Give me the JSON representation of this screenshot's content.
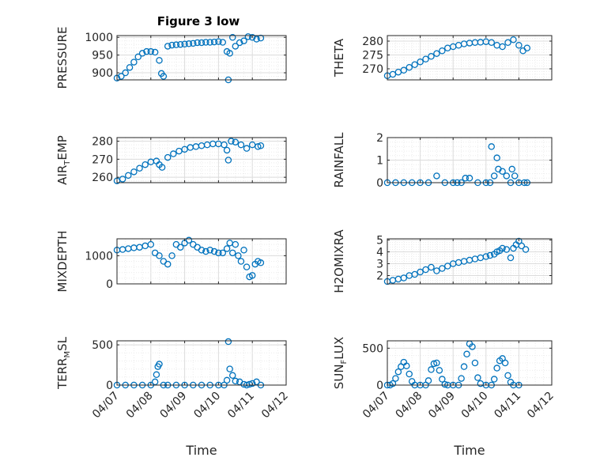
{
  "figure_title": "Figure 3 low",
  "chart_data": [
    {
      "type": "scatter",
      "ylabel": "PRESSURE",
      "xlim": [
        "04/07",
        "04/12"
      ],
      "ylim": [
        880,
        1005
      ],
      "yticks": [
        900,
        950,
        1000
      ],
      "marker_color": "#0072BD",
      "grid": "on",
      "x": [
        "04/07 00:00",
        "04/07 03:00",
        "04/07 06:00",
        "04/07 09:00",
        "04/07 12:00",
        "04/07 15:00",
        "04/07 18:00",
        "04/07 21:00",
        "04/08 00:00",
        "04/08 03:00",
        "04/08 06:00",
        "04/08 07:30",
        "04/08 09:00",
        "04/08 12:00",
        "04/08 15:00",
        "04/08 18:00",
        "04/08 21:00",
        "04/09 00:00",
        "04/09 03:00",
        "04/09 06:00",
        "04/09 09:00",
        "04/09 12:00",
        "04/09 15:00",
        "04/09 18:00",
        "04/09 21:00",
        "04/10 00:00",
        "04/10 03:00",
        "04/10 06:00",
        "04/10 07:00",
        "04/10 08:00",
        "04/10 10:00",
        "04/10 12:00",
        "04/10 15:00",
        "04/10 18:00",
        "04/10 21:00",
        "04/11 00:00",
        "04/11 03:00",
        "04/11 06:00"
      ],
      "values": [
        885,
        890,
        900,
        915,
        930,
        945,
        955,
        960,
        960,
        958,
        935,
        898,
        890,
        975,
        978,
        979,
        980,
        981,
        982,
        983,
        985,
        985,
        986,
        986,
        987,
        988,
        986,
        960,
        880,
        955,
        1000,
        975,
        985,
        990,
        1002,
        1000,
        995,
        998
      ]
    },
    {
      "type": "scatter",
      "ylabel": "THETA",
      "xlim": [
        "04/07",
        "04/12"
      ],
      "ylim": [
        266,
        282
      ],
      "yticks": [
        270,
        275,
        280
      ],
      "marker_color": "#0072BD",
      "grid": "on",
      "x": [
        "04/07 00:00",
        "04/07 04:00",
        "04/07 08:00",
        "04/07 12:00",
        "04/07 16:00",
        "04/07 20:00",
        "04/08 00:00",
        "04/08 04:00",
        "04/08 08:00",
        "04/08 12:00",
        "04/08 16:00",
        "04/08 20:00",
        "04/09 00:00",
        "04/09 04:00",
        "04/09 08:00",
        "04/09 12:00",
        "04/09 16:00",
        "04/09 20:00",
        "04/10 00:00",
        "04/10 04:00",
        "04/10 08:00",
        "04/10 12:00",
        "04/10 16:00",
        "04/10 20:00",
        "04/11 00:00",
        "04/11 03:00",
        "04/11 06:00"
      ],
      "values": [
        267.5,
        268,
        268.8,
        269.5,
        270.5,
        271.5,
        272.5,
        273.5,
        274.5,
        275.5,
        276.5,
        277.5,
        278,
        278.5,
        279,
        279.3,
        279.5,
        279.6,
        279.8,
        279.5,
        278.5,
        278,
        279.5,
        280.5,
        278.5,
        276.5,
        277.5
      ]
    },
    {
      "type": "scatter",
      "ylabel": "AIR_TEMP",
      "xlim": [
        "04/07",
        "04/12"
      ],
      "ylim": [
        257,
        282
      ],
      "yticks": [
        260,
        270,
        280
      ],
      "marker_color": "#0072BD",
      "grid": "on",
      "x": [
        "04/07 00:00",
        "04/07 04:00",
        "04/07 08:00",
        "04/07 12:00",
        "04/07 16:00",
        "04/07 20:00",
        "04/08 00:00",
        "04/08 04:00",
        "04/08 06:00",
        "04/08 08:00",
        "04/08 12:00",
        "04/08 16:00",
        "04/08 20:00",
        "04/09 00:00",
        "04/09 04:00",
        "04/09 08:00",
        "04/09 12:00",
        "04/09 16:00",
        "04/09 20:00",
        "04/10 00:00",
        "04/10 04:00",
        "04/10 06:00",
        "04/10 07:00",
        "04/10 09:00",
        "04/10 12:00",
        "04/10 16:00",
        "04/10 20:00",
        "04/11 00:00",
        "04/11 04:00",
        "04/11 06:00"
      ],
      "values": [
        258,
        259,
        261,
        263,
        265,
        267,
        268.5,
        269,
        267,
        265.5,
        271,
        273,
        274.5,
        275.5,
        276.5,
        277,
        277.5,
        278,
        278.5,
        278.5,
        278,
        275,
        269.5,
        280,
        279.5,
        278,
        276,
        278,
        277,
        277.5
      ]
    },
    {
      "type": "scatter",
      "ylabel": "RAINFALL",
      "xlim": [
        "04/07",
        "04/12"
      ],
      "ylim": [
        0,
        2
      ],
      "yticks": [
        0,
        1,
        2
      ],
      "marker_color": "#0072BD",
      "grid": "on",
      "x": [
        "04/07 00:00",
        "04/07 06:00",
        "04/07 12:00",
        "04/07 18:00",
        "04/08 00:00",
        "04/08 06:00",
        "04/08 12:00",
        "04/08 18:00",
        "04/09 00:00",
        "04/09 03:00",
        "04/09 06:00",
        "04/09 09:00",
        "04/09 12:00",
        "04/09 18:00",
        "04/10 00:00",
        "04/10 03:00",
        "04/10 04:00",
        "04/10 06:00",
        "04/10 08:00",
        "04/10 09:00",
        "04/10 12:00",
        "04/10 15:00",
        "04/10 18:00",
        "04/10 19:00",
        "04/10 21:00",
        "04/11 00:00",
        "04/11 04:00",
        "04/11 06:00"
      ],
      "values": [
        0,
        0,
        0,
        0,
        0,
        0,
        0.3,
        0,
        0,
        0,
        0,
        0.2,
        0.2,
        0,
        0,
        0,
        1.6,
        0.3,
        1.1,
        0.6,
        0.5,
        0.3,
        0,
        0.6,
        0.3,
        0,
        0,
        0
      ]
    },
    {
      "type": "scatter",
      "ylabel": "MIXDEPTH",
      "xlim": [
        "04/07",
        "04/12"
      ],
      "ylim": [
        0,
        1600
      ],
      "yticks": [
        0,
        1000
      ],
      "marker_color": "#0072BD",
      "grid": "on",
      "x": [
        "04/07 00:00",
        "04/07 04:00",
        "04/07 08:00",
        "04/07 12:00",
        "04/07 16:00",
        "04/07 20:00",
        "04/08 00:00",
        "04/08 03:00",
        "04/08 06:00",
        "04/08 09:00",
        "04/08 12:00",
        "04/08 15:00",
        "04/08 18:00",
        "04/08 21:00",
        "04/09 00:00",
        "04/09 03:00",
        "04/09 06:00",
        "04/09 09:00",
        "04/09 12:00",
        "04/09 15:00",
        "04/09 18:00",
        "04/09 21:00",
        "04/10 00:00",
        "04/10 03:00",
        "04/10 06:00",
        "04/10 08:00",
        "04/10 10:00",
        "04/10 12:00",
        "04/10 14:00",
        "04/10 16:00",
        "04/10 18:00",
        "04/10 20:00",
        "04/10 22:00",
        "04/11 00:00",
        "04/11 02:00",
        "04/11 04:00",
        "04/11 06:00"
      ],
      "values": [
        1200,
        1220,
        1250,
        1280,
        1300,
        1350,
        1400,
        1100,
        1000,
        800,
        700,
        1000,
        1400,
        1300,
        1450,
        1550,
        1400,
        1300,
        1200,
        1150,
        1200,
        1150,
        1100,
        1100,
        1250,
        1450,
        1100,
        1400,
        1000,
        800,
        1200,
        600,
        250,
        300,
        700,
        800,
        750
      ]
    },
    {
      "type": "scatter",
      "ylabel": "H2OMIXRA",
      "xlim": [
        "04/07",
        "04/12"
      ],
      "ylim": [
        1.3,
        5.1
      ],
      "yticks": [
        2,
        3,
        4,
        5
      ],
      "marker_color": "#0072BD",
      "grid": "on",
      "x": [
        "04/07 00:00",
        "04/07 04:00",
        "04/07 08:00",
        "04/07 12:00",
        "04/07 16:00",
        "04/07 20:00",
        "04/08 00:00",
        "04/08 04:00",
        "04/08 08:00",
        "04/08 12:00",
        "04/08 16:00",
        "04/08 20:00",
        "04/09 00:00",
        "04/09 04:00",
        "04/09 08:00",
        "04/09 12:00",
        "04/09 16:00",
        "04/09 20:00",
        "04/10 00:00",
        "04/10 03:00",
        "04/10 06:00",
        "04/10 08:00",
        "04/10 10:00",
        "04/10 12:00",
        "04/10 15:00",
        "04/10 18:00",
        "04/10 20:00",
        "04/10 22:00",
        "04/11 00:00",
        "04/11 02:00",
        "04/11 05:00"
      ],
      "values": [
        1.5,
        1.6,
        1.7,
        1.8,
        2,
        2.1,
        2.3,
        2.5,
        2.7,
        2.4,
        2.6,
        2.8,
        3,
        3.1,
        3.2,
        3.3,
        3.4,
        3.5,
        3.6,
        3.7,
        3.8,
        4,
        4.1,
        4.3,
        4.2,
        3.5,
        4.3,
        4.6,
        4.9,
        4.5,
        4.2
      ]
    },
    {
      "type": "scatter",
      "ylabel": "TERR_MSL",
      "xlim": [
        "04/07",
        "04/12"
      ],
      "ylim": [
        0,
        550
      ],
      "yticks": [
        0,
        500
      ],
      "xticks": [
        "04/07",
        "04/08",
        "04/09",
        "04/10",
        "04/11",
        "04/12"
      ],
      "xlabel": "Time",
      "marker_color": "#0072BD",
      "grid": "on",
      "x": [
        "04/07 00:00",
        "04/07 06:00",
        "04/07 12:00",
        "04/07 18:00",
        "04/08 00:00",
        "04/08 03:00",
        "04/08 04:00",
        "04/08 05:00",
        "04/08 06:00",
        "04/08 09:00",
        "04/08 12:00",
        "04/08 18:00",
        "04/09 00:00",
        "04/09 06:00",
        "04/09 12:00",
        "04/09 18:00",
        "04/10 00:00",
        "04/10 04:00",
        "04/10 06:00",
        "04/10 07:00",
        "04/10 08:00",
        "04/10 10:00",
        "04/10 12:00",
        "04/10 15:00",
        "04/10 18:00",
        "04/10 20:00",
        "04/10 22:00",
        "04/11 00:00",
        "04/11 03:00",
        "04/11 06:00"
      ],
      "values": [
        0,
        0,
        0,
        0,
        0,
        40,
        130,
        230,
        260,
        0,
        0,
        0,
        0,
        0,
        0,
        0,
        0,
        0,
        60,
        540,
        200,
        120,
        50,
        40,
        10,
        0,
        10,
        20,
        40,
        0
      ]
    },
    {
      "type": "scatter",
      "ylabel": "SUN_FLUX",
      "xlim": [
        "04/07",
        "04/12"
      ],
      "ylim": [
        0,
        600
      ],
      "yticks": [
        0,
        500
      ],
      "xticks": [
        "04/07",
        "04/08",
        "04/09",
        "04/10",
        "04/11",
        "04/12"
      ],
      "xlabel": "Time",
      "marker_color": "#0072BD",
      "grid": "on",
      "x": [
        "04/07 00:00",
        "04/07 02:00",
        "04/07 04:00",
        "04/07 06:00",
        "04/07 08:00",
        "04/07 10:00",
        "04/07 12:00",
        "04/07 14:00",
        "04/07 16:00",
        "04/07 18:00",
        "04/07 20:00",
        "04/08 00:00",
        "04/08 04:00",
        "04/08 06:00",
        "04/08 08:00",
        "04/08 10:00",
        "04/08 12:00",
        "04/08 14:00",
        "04/08 16:00",
        "04/08 18:00",
        "04/08 20:00",
        "04/09 00:00",
        "04/09 04:00",
        "04/09 06:00",
        "04/09 08:00",
        "04/09 10:00",
        "04/09 12:00",
        "04/09 14:00",
        "04/09 16:00",
        "04/09 18:00",
        "04/09 20:00",
        "04/10 00:00",
        "04/10 04:00",
        "04/10 06:00",
        "04/10 08:00",
        "04/10 10:00",
        "04/10 12:00",
        "04/10 14:00",
        "04/10 16:00",
        "04/10 18:00",
        "04/10 20:00",
        "04/11 00:00"
      ],
      "values": [
        0,
        0,
        20,
        90,
        180,
        250,
        310,
        260,
        150,
        50,
        0,
        0,
        0,
        60,
        210,
        290,
        300,
        200,
        80,
        10,
        0,
        0,
        0,
        90,
        250,
        420,
        560,
        520,
        300,
        100,
        20,
        0,
        0,
        80,
        230,
        330,
        360,
        300,
        130,
        40,
        0,
        0
      ]
    }
  ]
}
